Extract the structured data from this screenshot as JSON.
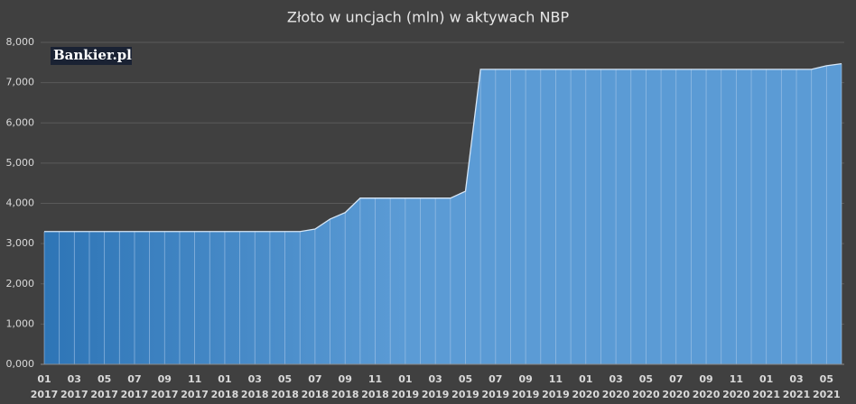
{
  "chart_data": {
    "type": "area",
    "title": "Złoto w uncjach (mln) w aktywach NBP",
    "watermark": "Bankier.pl",
    "categories": [
      "01\n2017",
      null,
      "03\n2017",
      null,
      "05\n2017",
      null,
      "07\n2017",
      null,
      "09\n2017",
      null,
      "11\n2017",
      null,
      "01\n2018",
      null,
      "03\n2018",
      null,
      "05\n2018",
      null,
      "07\n2018",
      null,
      "09\n2018",
      null,
      "11\n2018",
      null,
      "01\n2019",
      null,
      "03\n2019",
      null,
      "05\n2019",
      null,
      "07\n2019",
      null,
      "09\n2019",
      null,
      "11\n2019",
      null,
      "01\n2020",
      null,
      "03\n2020",
      null,
      "05\n2020",
      null,
      "07\n2020",
      null,
      "09\n2020",
      null,
      "11\n2020",
      null,
      "01\n2021",
      null,
      "03\n2021",
      null,
      "05\n2021",
      null
    ],
    "values": [
      3300,
      3300,
      3300,
      3300,
      3300,
      3300,
      3300,
      3300,
      3300,
      3300,
      3300,
      3300,
      3300,
      3300,
      3300,
      3300,
      3300,
      3300,
      3360,
      3610,
      3770,
      4130,
      4130,
      4130,
      4130,
      4130,
      4130,
      4130,
      4300,
      7330,
      7330,
      7330,
      7330,
      7330,
      7330,
      7330,
      7330,
      7330,
      7330,
      7330,
      7330,
      7330,
      7330,
      7330,
      7330,
      7330,
      7330,
      7330,
      7330,
      7330,
      7330,
      7330,
      7420,
      7470
    ],
    "color": "#5b9bd5",
    "ylim": [
      0,
      8000
    ],
    "yticks": [
      {
        "value": 0,
        "label": "0,000"
      },
      {
        "value": 1000,
        "label": "1,000"
      },
      {
        "value": 2000,
        "label": "2,000"
      },
      {
        "value": 3000,
        "label": "3,000"
      },
      {
        "value": 4000,
        "label": "4,000"
      },
      {
        "value": 5000,
        "label": "5,000"
      },
      {
        "value": 6000,
        "label": "6,000"
      },
      {
        "value": 7000,
        "label": "7,000"
      },
      {
        "value": 8000,
        "label": "8,000"
      }
    ],
    "grid": true
  }
}
